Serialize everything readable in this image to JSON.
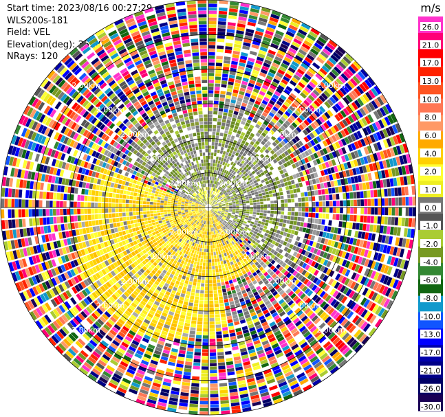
{
  "header": {
    "start_time": "Start time: 2023/08/16 00:27:29",
    "instrument": "WLS200s-181",
    "field": "Field: VEL",
    "elevation": "Elevation(deg): 35.30",
    "nrays": "NRays: 120"
  },
  "chart_data": {
    "type": "heatmap",
    "projection": "polar",
    "field": "VEL",
    "nrays": 120,
    "range_rings_km": [
      1.0,
      2.0,
      3.0,
      4.0,
      5.0,
      6.0
    ],
    "ring_label": "2.00km",
    "unit": "m/s",
    "colorbar": {
      "ticks": [
        "26.0",
        "21.0",
        "17.0",
        "13.0",
        "10.0",
        "8.0",
        "6.0",
        "4.0",
        "2.0",
        "1.0",
        "0.0",
        "-1.0",
        "-2.0",
        "-4.0",
        "-6.0",
        "-8.0",
        "-10.0",
        "-13.0",
        "-17.0",
        "-21.0",
        "-26.0",
        "-30.0"
      ],
      "colors": [
        "#ff33cc",
        "#ff0077",
        "#ff0000",
        "#ff2200",
        "#ff5522",
        "#ff7755",
        "#ff9966",
        "#ffaa00",
        "#ffd000",
        "#ffff33",
        "#eeee22",
        "#777777",
        "#555555",
        "#aacc33",
        "#779922",
        "#338833",
        "#116611",
        "#1199cc",
        "#1155ff",
        "#0000ff",
        "#0000aa",
        "#000088",
        "#000066",
        "#1a0055"
      ]
    },
    "regions": [
      {
        "label": "near-range positive velocities (west/south-west sector)",
        "from_deg": 180,
        "to_deg": 270,
        "max_ring": 4,
        "approx_value": 1.5
      },
      {
        "label": "near-range negative velocities (north/east sector)",
        "from_deg": 0,
        "to_deg": 120,
        "max_ring": 3,
        "approx_value": -3.0
      },
      {
        "label": "far-range noisy returns",
        "from_ring": 4,
        "to_ring": 6,
        "approx_value": "mixed"
      }
    ]
  }
}
